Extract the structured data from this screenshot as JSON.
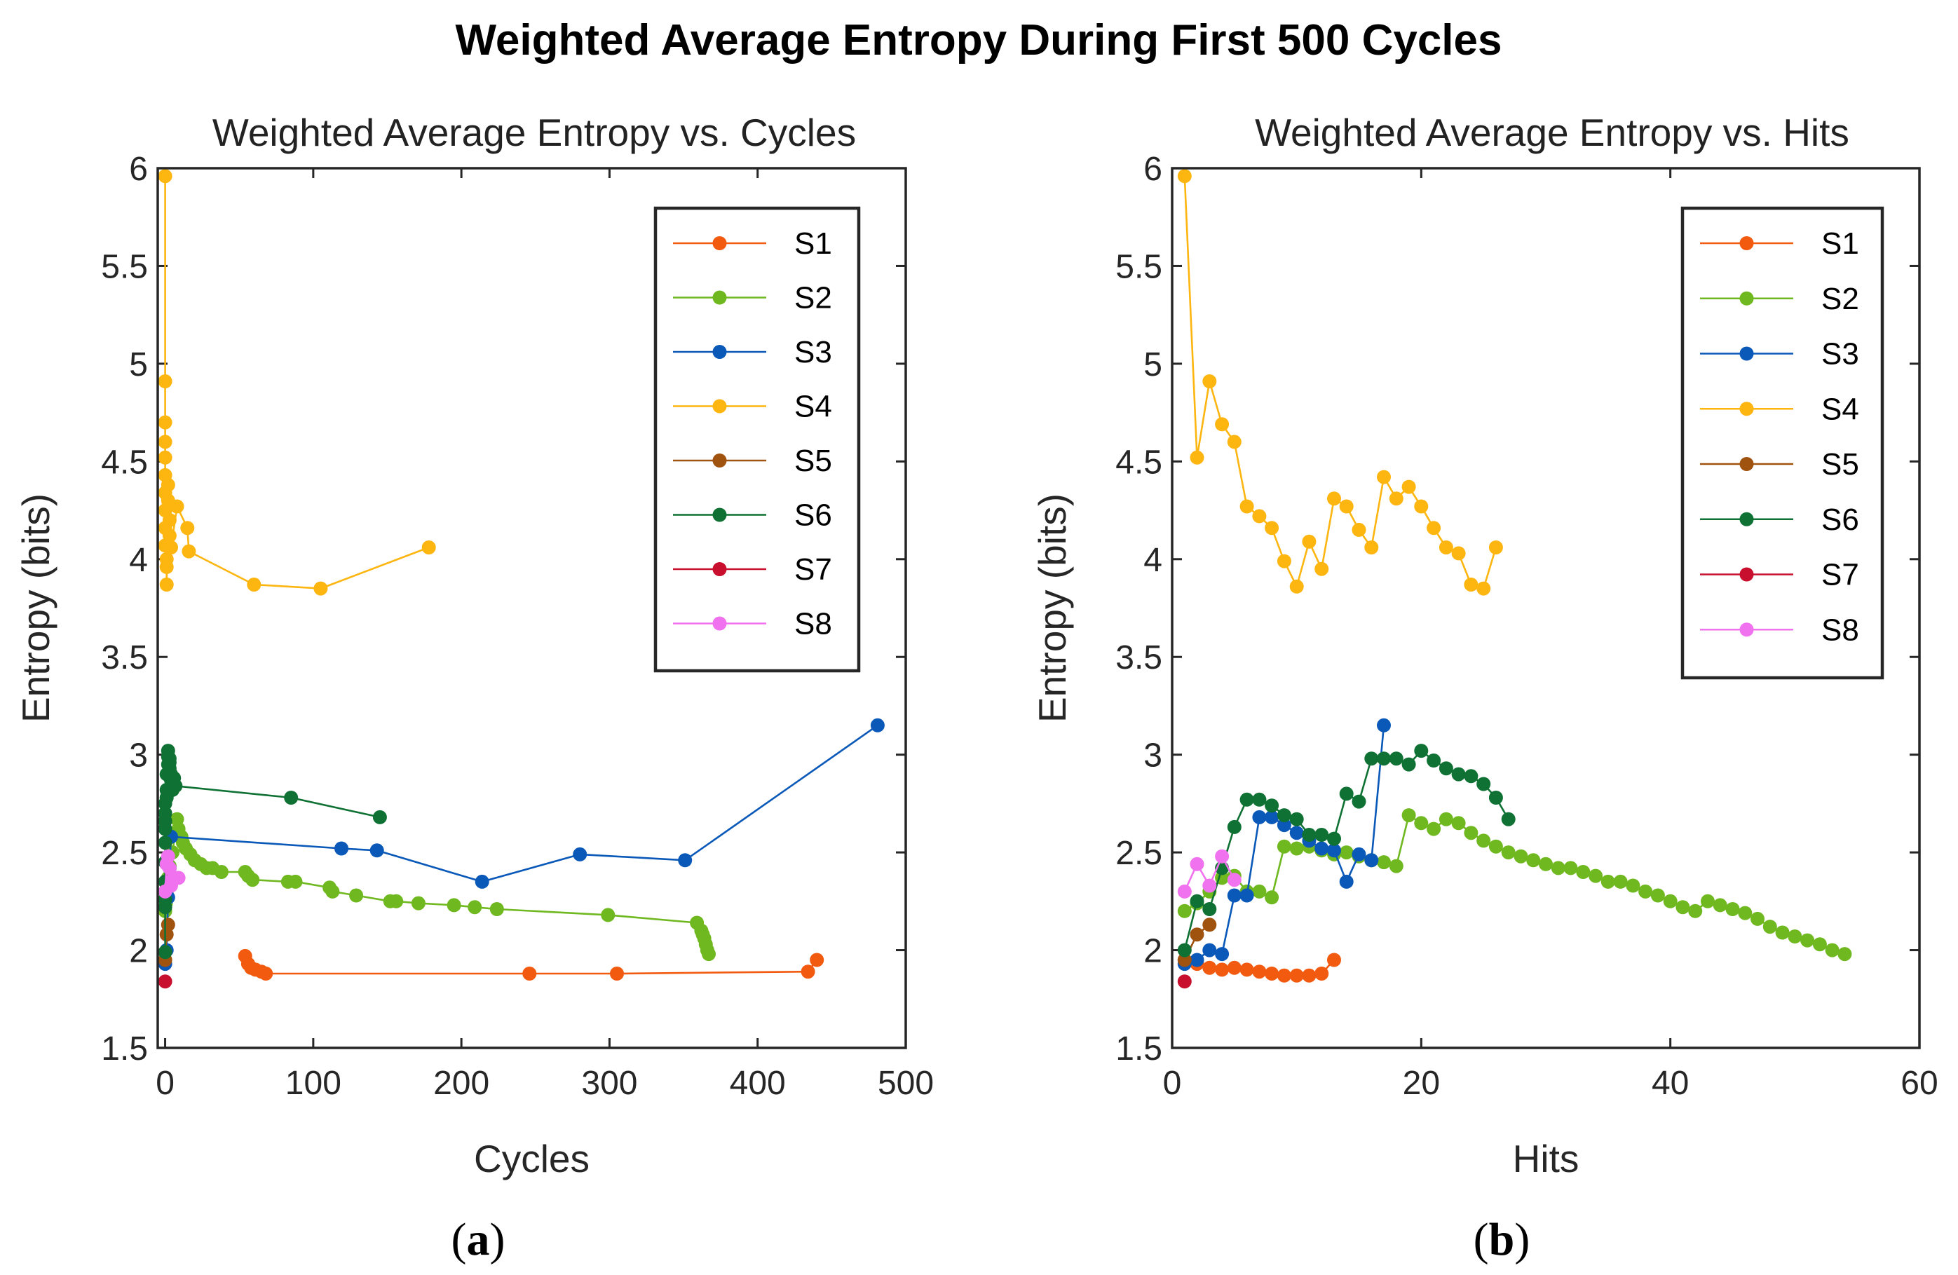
{
  "figure": {
    "title": "Weighted Average Entropy During First 500 Cycles",
    "colors": {
      "S1": "#F25A10",
      "S2": "#6FB81F",
      "S3": "#0A58B8",
      "S4": "#FDB510",
      "S5": "#A0520F",
      "S6": "#0F7133",
      "S7": "#C8102E",
      "S8": "#F072EE"
    }
  },
  "chart_data": [
    {
      "type": "line",
      "panel": "(a)",
      "caption_letter": "a",
      "title": "Weighted Average Entropy vs. Cycles",
      "xlabel": "Cycles",
      "ylabel": "Entropy (bits)",
      "xlim": [
        -5,
        500
      ],
      "ylim": [
        1.5,
        6
      ],
      "xticks": [
        0,
        100,
        200,
        300,
        400,
        500
      ],
      "yticks": [
        1.5,
        2,
        2.5,
        3,
        3.5,
        4,
        4.5,
        5,
        5.5,
        6
      ],
      "legend": [
        "S1",
        "S2",
        "S3",
        "S4",
        "S5",
        "S6",
        "S7",
        "S8"
      ],
      "legend_location": "top-right",
      "series": [
        {
          "name": "S1",
          "x": [
            54,
            56,
            58,
            61,
            65,
            68,
            246,
            305,
            434,
            440
          ],
          "y": [
            1.97,
            1.93,
            1.91,
            1.9,
            1.89,
            1.88,
            1.88,
            1.88,
            1.89,
            1.95
          ]
        },
        {
          "name": "S2",
          "x": [
            0,
            0.5,
            1,
            2,
            3,
            5,
            8,
            9,
            11,
            12,
            14,
            17,
            20,
            24,
            28,
            32,
            38,
            54,
            56,
            59,
            83,
            88,
            111,
            113,
            129,
            152,
            156,
            171,
            195,
            209,
            224,
            299,
            359,
            362,
            363,
            364,
            365,
            366,
            367
          ],
          "y": [
            2.2,
            2.24,
            2.3,
            2.37,
            2.43,
            2.5,
            2.67,
            2.62,
            2.58,
            2.55,
            2.52,
            2.49,
            2.46,
            2.44,
            2.42,
            2.42,
            2.4,
            2.4,
            2.38,
            2.36,
            2.35,
            2.35,
            2.32,
            2.3,
            2.28,
            2.25,
            2.25,
            2.24,
            2.23,
            2.22,
            2.21,
            2.18,
            2.14,
            2.1,
            2.08,
            2.06,
            2.03,
            2.0,
            1.98
          ]
        },
        {
          "name": "S3",
          "x": [
            0,
            1,
            2,
            3,
            4,
            119,
            143,
            214,
            280,
            351,
            481
          ],
          "y": [
            1.93,
            2.0,
            2.27,
            2.42,
            2.58,
            2.52,
            2.51,
            2.35,
            2.49,
            2.46,
            3.15
          ]
        },
        {
          "name": "S4",
          "x": [
            0,
            0,
            0,
            0,
            0,
            0,
            0,
            0,
            0,
            0,
            1,
            1,
            1,
            2,
            2,
            3,
            3,
            4,
            8,
            15,
            16,
            60,
            105,
            178
          ],
          "y": [
            5.96,
            4.91,
            4.7,
            4.6,
            4.52,
            4.43,
            4.34,
            4.25,
            4.16,
            4.07,
            4.0,
            3.96,
            3.87,
            4.3,
            4.38,
            4.2,
            4.12,
            4.06,
            4.27,
            4.16,
            4.04,
            3.87,
            3.85,
            4.06
          ]
        },
        {
          "name": "S5",
          "x": [
            0,
            1,
            2
          ],
          "y": [
            1.95,
            2.08,
            2.13
          ]
        },
        {
          "name": "S6",
          "x": [
            0,
            0,
            0,
            0,
            0,
            0,
            0,
            0,
            0,
            0,
            1,
            1,
            1,
            2,
            2,
            2,
            3,
            3,
            3,
            4,
            4,
            5,
            5,
            6,
            7,
            85,
            145
          ],
          "y": [
            1.99,
            2.22,
            2.26,
            2.35,
            2.45,
            2.55,
            2.62,
            2.66,
            2.7,
            2.75,
            2.78,
            2.82,
            2.9,
            2.95,
            2.99,
            3.02,
            2.98,
            2.96,
            2.93,
            2.9,
            2.87,
            2.84,
            2.82,
            2.88,
            2.84,
            2.78,
            2.68
          ]
        },
        {
          "name": "S7",
          "x": [
            0
          ],
          "y": [
            1.84
          ]
        },
        {
          "name": "S8",
          "x": [
            0,
            1,
            2,
            3,
            4,
            5,
            7,
            9
          ],
          "y": [
            2.3,
            2.44,
            2.48,
            2.42,
            2.33,
            2.36,
            2.37,
            2.37
          ]
        }
      ]
    },
    {
      "type": "line",
      "panel": "(b)",
      "caption_letter": "b",
      "title": "Weighted Average Entropy vs. Hits",
      "xlabel": "Hits",
      "ylabel": "Entropy (bits)",
      "xlim": [
        0,
        60
      ],
      "ylim": [
        1.5,
        6
      ],
      "xticks": [
        0,
        20,
        40,
        60
      ],
      "yticks": [
        1.5,
        2,
        2.5,
        3,
        3.5,
        4,
        4.5,
        5,
        5.5,
        6
      ],
      "legend": [
        "S1",
        "S2",
        "S3",
        "S4",
        "S5",
        "S6",
        "S7",
        "S8"
      ],
      "legend_location": "top-right",
      "series": [
        {
          "name": "S1",
          "x": [
            1,
            2,
            3,
            4,
            5,
            6,
            7,
            8,
            9,
            10,
            11,
            12,
            13
          ],
          "y": [
            1.95,
            1.93,
            1.91,
            1.9,
            1.91,
            1.9,
            1.89,
            1.88,
            1.87,
            1.87,
            1.87,
            1.88,
            1.95
          ]
        },
        {
          "name": "S2",
          "x": [
            1,
            2,
            3,
            4,
            5,
            6,
            7,
            8,
            9,
            10,
            11,
            12,
            13,
            14,
            15,
            16,
            17,
            18,
            19,
            20,
            21,
            22,
            23,
            24,
            25,
            26,
            27,
            28,
            29,
            30,
            31,
            32,
            33,
            34,
            35,
            36,
            37,
            38,
            39,
            40,
            41,
            42,
            43,
            44,
            45,
            46,
            47,
            48,
            49,
            50,
            51,
            52,
            53,
            54
          ],
          "y": [
            2.2,
            2.24,
            2.3,
            2.37,
            2.38,
            2.3,
            2.3,
            2.27,
            2.53,
            2.52,
            2.53,
            2.51,
            2.49,
            2.5,
            2.48,
            2.46,
            2.45,
            2.43,
            2.69,
            2.65,
            2.62,
            2.67,
            2.65,
            2.6,
            2.56,
            2.53,
            2.5,
            2.48,
            2.46,
            2.44,
            2.42,
            2.42,
            2.4,
            2.38,
            2.35,
            2.35,
            2.33,
            2.3,
            2.28,
            2.25,
            2.22,
            2.2,
            2.25,
            2.23,
            2.21,
            2.19,
            2.16,
            2.12,
            2.09,
            2.07,
            2.05,
            2.03,
            2.0,
            1.98
          ]
        },
        {
          "name": "S3",
          "x": [
            1,
            2,
            3,
            4,
            5,
            6,
            7,
            8,
            9,
            10,
            11,
            12,
            13,
            14,
            15,
            16,
            17
          ],
          "y": [
            1.93,
            1.95,
            2.0,
            1.98,
            2.28,
            2.28,
            2.68,
            2.68,
            2.64,
            2.6,
            2.56,
            2.52,
            2.51,
            2.35,
            2.49,
            2.46,
            3.15
          ]
        },
        {
          "name": "S4",
          "x": [
            1,
            2,
            3,
            4,
            5,
            6,
            7,
            8,
            9,
            10,
            11,
            12,
            13,
            14,
            15,
            16,
            17,
            18,
            19,
            20,
            21,
            22,
            23,
            24,
            25,
            26
          ],
          "y": [
            5.96,
            4.52,
            4.91,
            4.69,
            4.6,
            4.27,
            4.22,
            4.16,
            3.99,
            3.86,
            4.09,
            3.95,
            4.31,
            4.27,
            4.15,
            4.06,
            4.42,
            4.31,
            4.37,
            4.27,
            4.16,
            4.06,
            4.03,
            3.87,
            3.85,
            4.06
          ]
        },
        {
          "name": "S5",
          "x": [
            1,
            2,
            3
          ],
          "y": [
            1.95,
            2.08,
            2.13
          ]
        },
        {
          "name": "S6",
          "x": [
            1,
            2,
            3,
            4,
            5,
            6,
            7,
            8,
            9,
            10,
            11,
            12,
            13,
            14,
            15,
            16,
            17,
            18,
            19,
            20,
            21,
            22,
            23,
            24,
            25,
            26,
            27
          ],
          "y": [
            2.0,
            2.25,
            2.21,
            2.42,
            2.63,
            2.77,
            2.77,
            2.74,
            2.69,
            2.67,
            2.59,
            2.59,
            2.57,
            2.8,
            2.76,
            2.98,
            2.98,
            2.98,
            2.95,
            3.02,
            2.97,
            2.93,
            2.9,
            2.89,
            2.85,
            2.78,
            2.67
          ]
        },
        {
          "name": "S7",
          "x": [
            1
          ],
          "y": [
            1.84
          ]
        },
        {
          "name": "S8",
          "x": [
            1,
            2,
            3,
            4,
            5
          ],
          "y": [
            2.3,
            2.44,
            2.33,
            2.48,
            2.36
          ]
        }
      ]
    }
  ]
}
